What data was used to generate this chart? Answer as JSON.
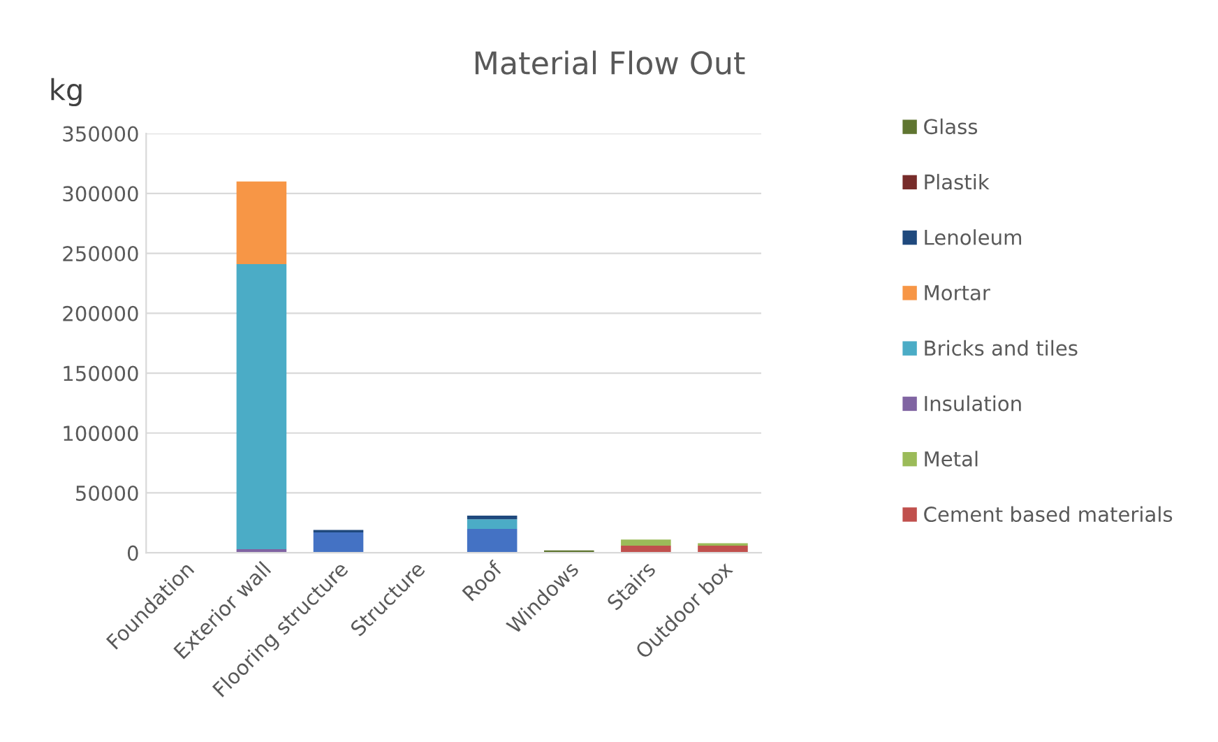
{
  "chart_data": {
    "type": "bar",
    "title": "Material Flow Out",
    "ylabel": "kg",
    "stacked": true,
    "categories": [
      "Foundation",
      "Exterior wall",
      "Flooring structure",
      "Structure",
      "Roof",
      "Windows",
      "Stairs",
      "Outdoor box"
    ],
    "series": [
      {
        "color": "#4472c4",
        "values": [
          0,
          0,
          17000,
          0,
          20000,
          0,
          0,
          0
        ]
      },
      {
        "name": "Cement based materials",
        "color": "#c0504d",
        "values": [
          0,
          0,
          0,
          0,
          0,
          0,
          6000,
          6000
        ]
      },
      {
        "name": "Metal",
        "color": "#9bbb59",
        "values": [
          0,
          0,
          0,
          0,
          0,
          0,
          5000,
          2000
        ]
      },
      {
        "name": "Insulation",
        "color": "#8064a2",
        "values": [
          0,
          3000,
          0,
          0,
          0,
          0,
          0,
          0
        ]
      },
      {
        "name": "Bricks and tiles",
        "color": "#4bacc6",
        "values": [
          0,
          238000,
          0,
          0,
          8000,
          0,
          0,
          0
        ]
      },
      {
        "name": "Mortar",
        "color": "#f79646",
        "values": [
          0,
          69000,
          0,
          0,
          0,
          0,
          0,
          0
        ]
      },
      {
        "name": "Lenoleum",
        "color": "#1f497d",
        "values": [
          0,
          0,
          2000,
          0,
          3000,
          0,
          0,
          0
        ]
      },
      {
        "name": "Plastik",
        "color": "#772c2a",
        "values": [
          0,
          0,
          0,
          0,
          0,
          0,
          0,
          0
        ]
      },
      {
        "name": "Glass",
        "color": "#5f7530",
        "values": [
          0,
          0,
          0,
          0,
          0,
          2000,
          0,
          0
        ]
      }
    ],
    "ylim": [
      0,
      350000
    ],
    "yticks": [
      0,
      50000,
      100000,
      150000,
      200000,
      250000,
      300000,
      350000
    ],
    "grid": "y",
    "legend": "right"
  }
}
